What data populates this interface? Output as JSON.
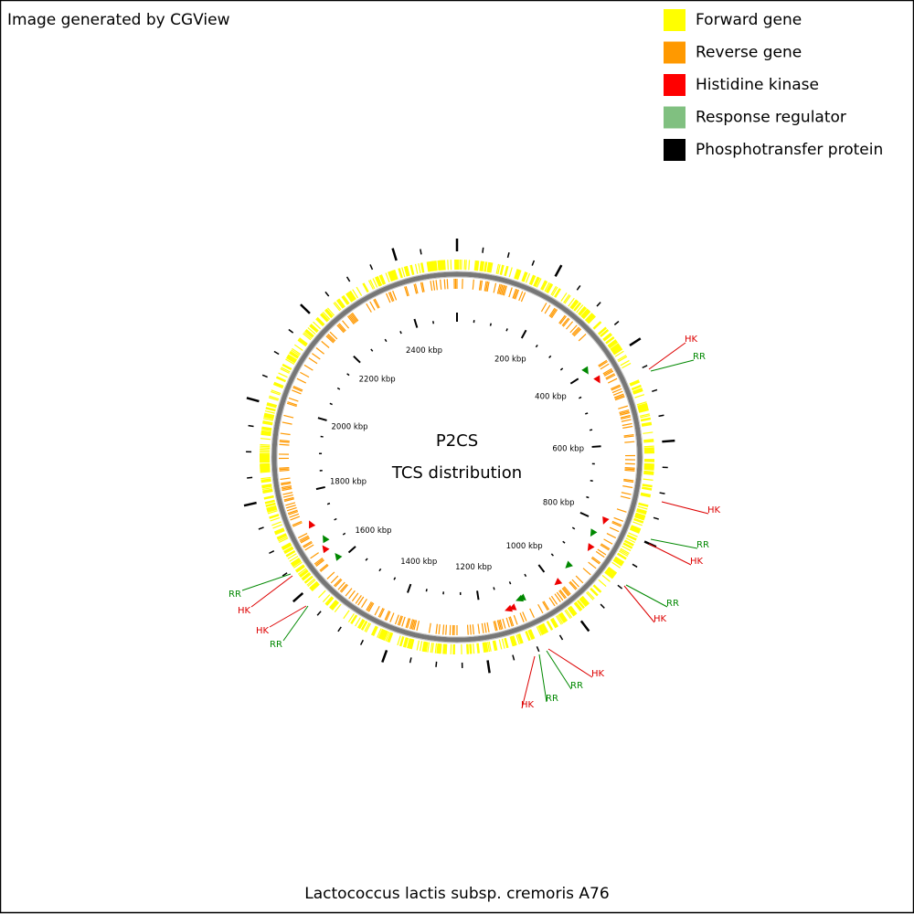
{
  "header": {
    "credit": "Image generated by CGView"
  },
  "legend": [
    "Forward gene",
    "Reverse gene",
    "Histidine kinase",
    "Response regulator",
    "Phosphotransfer protein"
  ],
  "map": {
    "title": "P2CS",
    "subtitle": "TCS distribution",
    "scale_labels": [
      "200 kbp",
      "400 kbp",
      "600 kbp",
      "800 kbp",
      "1000 kbp",
      "1200 kbp",
      "1400 kbp",
      "1600 kbp",
      "1800 kbp",
      "2000 kbp",
      "2200 kbp",
      "2400 kbp"
    ],
    "features": [
      "HK",
      "RR",
      "HK",
      "RR",
      "HK",
      "RR",
      "HK",
      "HK",
      "RR",
      "RR",
      "HK",
      "RR",
      "HK",
      "HK",
      "RR"
    ]
  },
  "footer": {
    "organism": "Lactococcus lactis subsp. cremoris A76"
  }
}
